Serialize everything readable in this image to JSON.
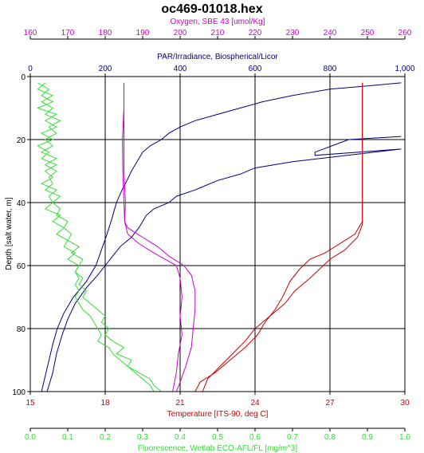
{
  "chart_data": {
    "type": "line",
    "title": "oc469-01018.hex",
    "grid": true,
    "y_axis": {
      "label": "Depth [salt water, m]",
      "range": [
        0,
        100
      ],
      "inverted": true,
      "ticks": [
        0,
        20,
        40,
        60,
        80,
        100
      ]
    },
    "x_axes": [
      {
        "id": "oxygen",
        "label": "Oxygen, SBE 43 [umol/Kg]",
        "position": "top-1",
        "color": "#cc00cc",
        "range": [
          160,
          260
        ],
        "ticks": [
          160,
          170,
          180,
          190,
          200,
          210,
          220,
          230,
          240,
          250,
          260
        ]
      },
      {
        "id": "par",
        "label": "PAR/Irradiance, Biospherical/Licor",
        "position": "top-2",
        "color": "#000080",
        "range": [
          0,
          1000
        ],
        "ticks": [
          0,
          200,
          400,
          600,
          800,
          1000
        ],
        "tick_labels": [
          "0",
          "200",
          "400",
          "600",
          "800",
          "1,000"
        ]
      },
      {
        "id": "temperature",
        "label": "Temperature [ITS-90, deg C]",
        "position": "bottom-1",
        "color": "#cc0000",
        "range": [
          15,
          30
        ],
        "ticks": [
          15,
          18,
          21,
          24,
          27,
          30
        ]
      },
      {
        "id": "fluorescence",
        "label": "Fluorescence, Wetlab ECO-AFL/FL [mg/m^3]",
        "position": "bottom-2",
        "color": "#33dd33",
        "range": [
          0,
          1
        ],
        "ticks": [
          0,
          0.1,
          0.2,
          0.3,
          0.4,
          0.5,
          0.6,
          0.7,
          0.8,
          0.9,
          1
        ],
        "tick_labels": [
          "0.0",
          "0.1",
          "0.2",
          "0.3",
          "0.4",
          "0.5",
          "0.6",
          "0.7",
          "0.8",
          "0.9",
          "1.0"
        ]
      }
    ],
    "series": [
      {
        "id": "par_down",
        "axis": "par",
        "color": "#000080",
        "points": [
          [
            990,
            2
          ],
          [
            900,
            3
          ],
          [
            800,
            4
          ],
          [
            700,
            6
          ],
          [
            620,
            8
          ],
          [
            560,
            10
          ],
          [
            500,
            12
          ],
          [
            440,
            14
          ],
          [
            400,
            16
          ],
          [
            370,
            18
          ],
          [
            350,
            20
          ],
          [
            320,
            22
          ],
          [
            300,
            24
          ],
          [
            285,
            27
          ],
          [
            270,
            30
          ],
          [
            258,
            33
          ],
          [
            245,
            36
          ],
          [
            230,
            40
          ],
          [
            218,
            45
          ],
          [
            205,
            50
          ],
          [
            190,
            55
          ],
          [
            175,
            60
          ],
          [
            150,
            65
          ],
          [
            115,
            70
          ],
          [
            90,
            75
          ],
          [
            72,
            80
          ],
          [
            60,
            85
          ],
          [
            50,
            90
          ],
          [
            40,
            95
          ],
          [
            30,
            100
          ]
        ]
      },
      {
        "id": "par_up",
        "axis": "par",
        "color": "#000080",
        "points": [
          [
            990,
            19
          ],
          [
            850,
            20
          ],
          [
            760,
            24
          ],
          [
            760,
            25
          ],
          [
            990,
            23
          ],
          [
            700,
            27
          ],
          [
            600,
            29
          ],
          [
            560,
            31
          ],
          [
            500,
            33
          ],
          [
            440,
            36
          ],
          [
            390,
            38
          ],
          [
            370,
            40
          ],
          [
            330,
            42
          ],
          [
            310,
            44
          ],
          [
            300,
            46
          ],
          [
            290,
            48
          ],
          [
            270,
            51
          ],
          [
            240,
            54
          ],
          [
            220,
            57
          ],
          [
            200,
            60
          ],
          [
            180,
            63
          ],
          [
            150,
            67
          ],
          [
            120,
            72
          ],
          [
            100,
            77
          ],
          [
            85,
            82
          ],
          [
            70,
            88
          ],
          [
            60,
            94
          ],
          [
            45,
            100
          ]
        ]
      },
      {
        "id": "oxygen_a",
        "axis": "oxygen",
        "color": "#cc00cc",
        "points": [
          [
            185,
            2
          ],
          [
            185,
            10
          ],
          [
            184.6,
            20
          ],
          [
            184.7,
            30
          ],
          [
            185,
            40
          ],
          [
            185.2,
            46
          ],
          [
            186,
            48
          ],
          [
            190,
            51
          ],
          [
            194,
            54
          ],
          [
            197,
            57
          ],
          [
            201,
            60
          ],
          [
            203,
            63
          ],
          [
            204,
            68
          ],
          [
            204,
            74
          ],
          [
            203.5,
            80
          ],
          [
            203,
            86
          ],
          [
            201.5,
            92
          ],
          [
            200,
            97
          ],
          [
            199,
            100
          ]
        ]
      },
      {
        "id": "oxygen_b",
        "axis": "oxygen",
        "color": "#cc00cc",
        "points": [
          [
            185,
            2
          ],
          [
            185,
            10
          ],
          [
            185,
            20
          ],
          [
            185,
            30
          ],
          [
            185.4,
            40
          ],
          [
            185.2,
            46
          ],
          [
            186,
            50
          ],
          [
            189,
            53
          ],
          [
            193,
            56
          ],
          [
            196,
            58
          ],
          [
            199,
            60
          ],
          [
            200,
            64
          ],
          [
            200.5,
            70
          ],
          [
            200,
            76
          ],
          [
            200.5,
            82
          ],
          [
            199.5,
            88
          ],
          [
            199,
            94
          ],
          [
            198,
            100
          ]
        ]
      },
      {
        "id": "temperature_a",
        "axis": "temperature",
        "color": "#cc0000",
        "points": [
          [
            28.3,
            2
          ],
          [
            28.3,
            10
          ],
          [
            28.3,
            20
          ],
          [
            28.3,
            30
          ],
          [
            28.3,
            40
          ],
          [
            28.3,
            46
          ],
          [
            28,
            50
          ],
          [
            27.4,
            53
          ],
          [
            26.8,
            56
          ],
          [
            26.2,
            58
          ],
          [
            25.8,
            61
          ],
          [
            25.4,
            65
          ],
          [
            25.1,
            70
          ],
          [
            24.8,
            74
          ],
          [
            24.4,
            78
          ],
          [
            24.1,
            82
          ],
          [
            23.6,
            86
          ],
          [
            23,
            90
          ],
          [
            22.4,
            94
          ],
          [
            21.8,
            97
          ],
          [
            21.6,
            100
          ]
        ]
      },
      {
        "id": "temperature_b",
        "axis": "temperature",
        "color": "#cc0000",
        "points": [
          [
            28.3,
            2
          ],
          [
            28.3,
            10
          ],
          [
            28.3,
            20
          ],
          [
            28.3,
            30
          ],
          [
            28.3,
            40
          ],
          [
            28.3,
            47
          ],
          [
            28.1,
            51
          ],
          [
            27.6,
            55
          ],
          [
            27,
            58
          ],
          [
            26.6,
            61
          ],
          [
            26.2,
            64
          ],
          [
            25.6,
            68
          ],
          [
            25.2,
            72
          ],
          [
            24.6,
            76
          ],
          [
            24,
            80
          ],
          [
            23.6,
            84
          ],
          [
            23.1,
            88
          ],
          [
            22.6,
            92
          ],
          [
            22.1,
            96
          ],
          [
            21.9,
            100
          ]
        ]
      },
      {
        "id": "fluorescence_a",
        "axis": "fluorescence",
        "color": "#33dd33",
        "points": [
          [
            0.02,
            2
          ],
          [
            0.05,
            4
          ],
          [
            0.03,
            6
          ],
          [
            0.06,
            8
          ],
          [
            0.02,
            10
          ],
          [
            0.07,
            12
          ],
          [
            0.04,
            14
          ],
          [
            0.07,
            16
          ],
          [
            0.03,
            18
          ],
          [
            0.06,
            20
          ],
          [
            0.02,
            22
          ],
          [
            0.05,
            24
          ],
          [
            0.03,
            26
          ],
          [
            0.07,
            28
          ],
          [
            0.04,
            30
          ],
          [
            0.06,
            32
          ],
          [
            0.03,
            34
          ],
          [
            0.07,
            36
          ],
          [
            0.05,
            38
          ],
          [
            0.06,
            40
          ],
          [
            0.04,
            42
          ],
          [
            0.08,
            44
          ],
          [
            0.06,
            46
          ],
          [
            0.09,
            48
          ],
          [
            0.07,
            50
          ],
          [
            0.1,
            52
          ],
          [
            0.09,
            54
          ],
          [
            0.12,
            56
          ],
          [
            0.1,
            58
          ],
          [
            0.13,
            60
          ],
          [
            0.12,
            62
          ],
          [
            0.14,
            64
          ],
          [
            0.13,
            66
          ],
          [
            0.15,
            68
          ],
          [
            0.14,
            70
          ],
          [
            0.16,
            72
          ],
          [
            0.18,
            74
          ],
          [
            0.2,
            76
          ],
          [
            0.19,
            78
          ],
          [
            0.21,
            80
          ],
          [
            0.2,
            82
          ],
          [
            0.22,
            84
          ],
          [
            0.25,
            86
          ],
          [
            0.23,
            88
          ],
          [
            0.27,
            90
          ],
          [
            0.26,
            92
          ],
          [
            0.29,
            94
          ],
          [
            0.32,
            96
          ],
          [
            0.33,
            98
          ],
          [
            0.35,
            100
          ]
        ]
      },
      {
        "id": "fluorescence_b",
        "axis": "fluorescence",
        "color": "#33dd33",
        "points": [
          [
            0.04,
            2
          ],
          [
            0.02,
            4
          ],
          [
            0.06,
            6
          ],
          [
            0.03,
            8
          ],
          [
            0.06,
            10
          ],
          [
            0.04,
            12
          ],
          [
            0.08,
            14
          ],
          [
            0.05,
            16
          ],
          [
            0.07,
            18
          ],
          [
            0.04,
            20
          ],
          [
            0.06,
            22
          ],
          [
            0.03,
            24
          ],
          [
            0.07,
            26
          ],
          [
            0.04,
            28
          ],
          [
            0.07,
            30
          ],
          [
            0.05,
            32
          ],
          [
            0.06,
            34
          ],
          [
            0.04,
            36
          ],
          [
            0.08,
            38
          ],
          [
            0.06,
            40
          ],
          [
            0.08,
            42
          ],
          [
            0.07,
            44
          ],
          [
            0.1,
            46
          ],
          [
            0.09,
            48
          ],
          [
            0.11,
            50
          ],
          [
            0.1,
            52
          ],
          [
            0.13,
            54
          ],
          [
            0.11,
            56
          ],
          [
            0.14,
            58
          ],
          [
            0.13,
            60
          ],
          [
            0.12,
            62
          ],
          [
            0.13,
            64
          ],
          [
            0.12,
            66
          ],
          [
            0.13,
            68
          ],
          [
            0.12,
            70
          ],
          [
            0.13,
            72
          ],
          [
            0.14,
            74
          ],
          [
            0.16,
            76
          ],
          [
            0.17,
            78
          ],
          [
            0.18,
            80
          ],
          [
            0.19,
            82
          ],
          [
            0.18,
            84
          ],
          [
            0.21,
            86
          ],
          [
            0.22,
            88
          ],
          [
            0.24,
            90
          ],
          [
            0.26,
            92
          ],
          [
            0.28,
            94
          ],
          [
            0.3,
            96
          ],
          [
            0.32,
            98
          ],
          [
            0.33,
            100
          ]
        ]
      }
    ]
  }
}
